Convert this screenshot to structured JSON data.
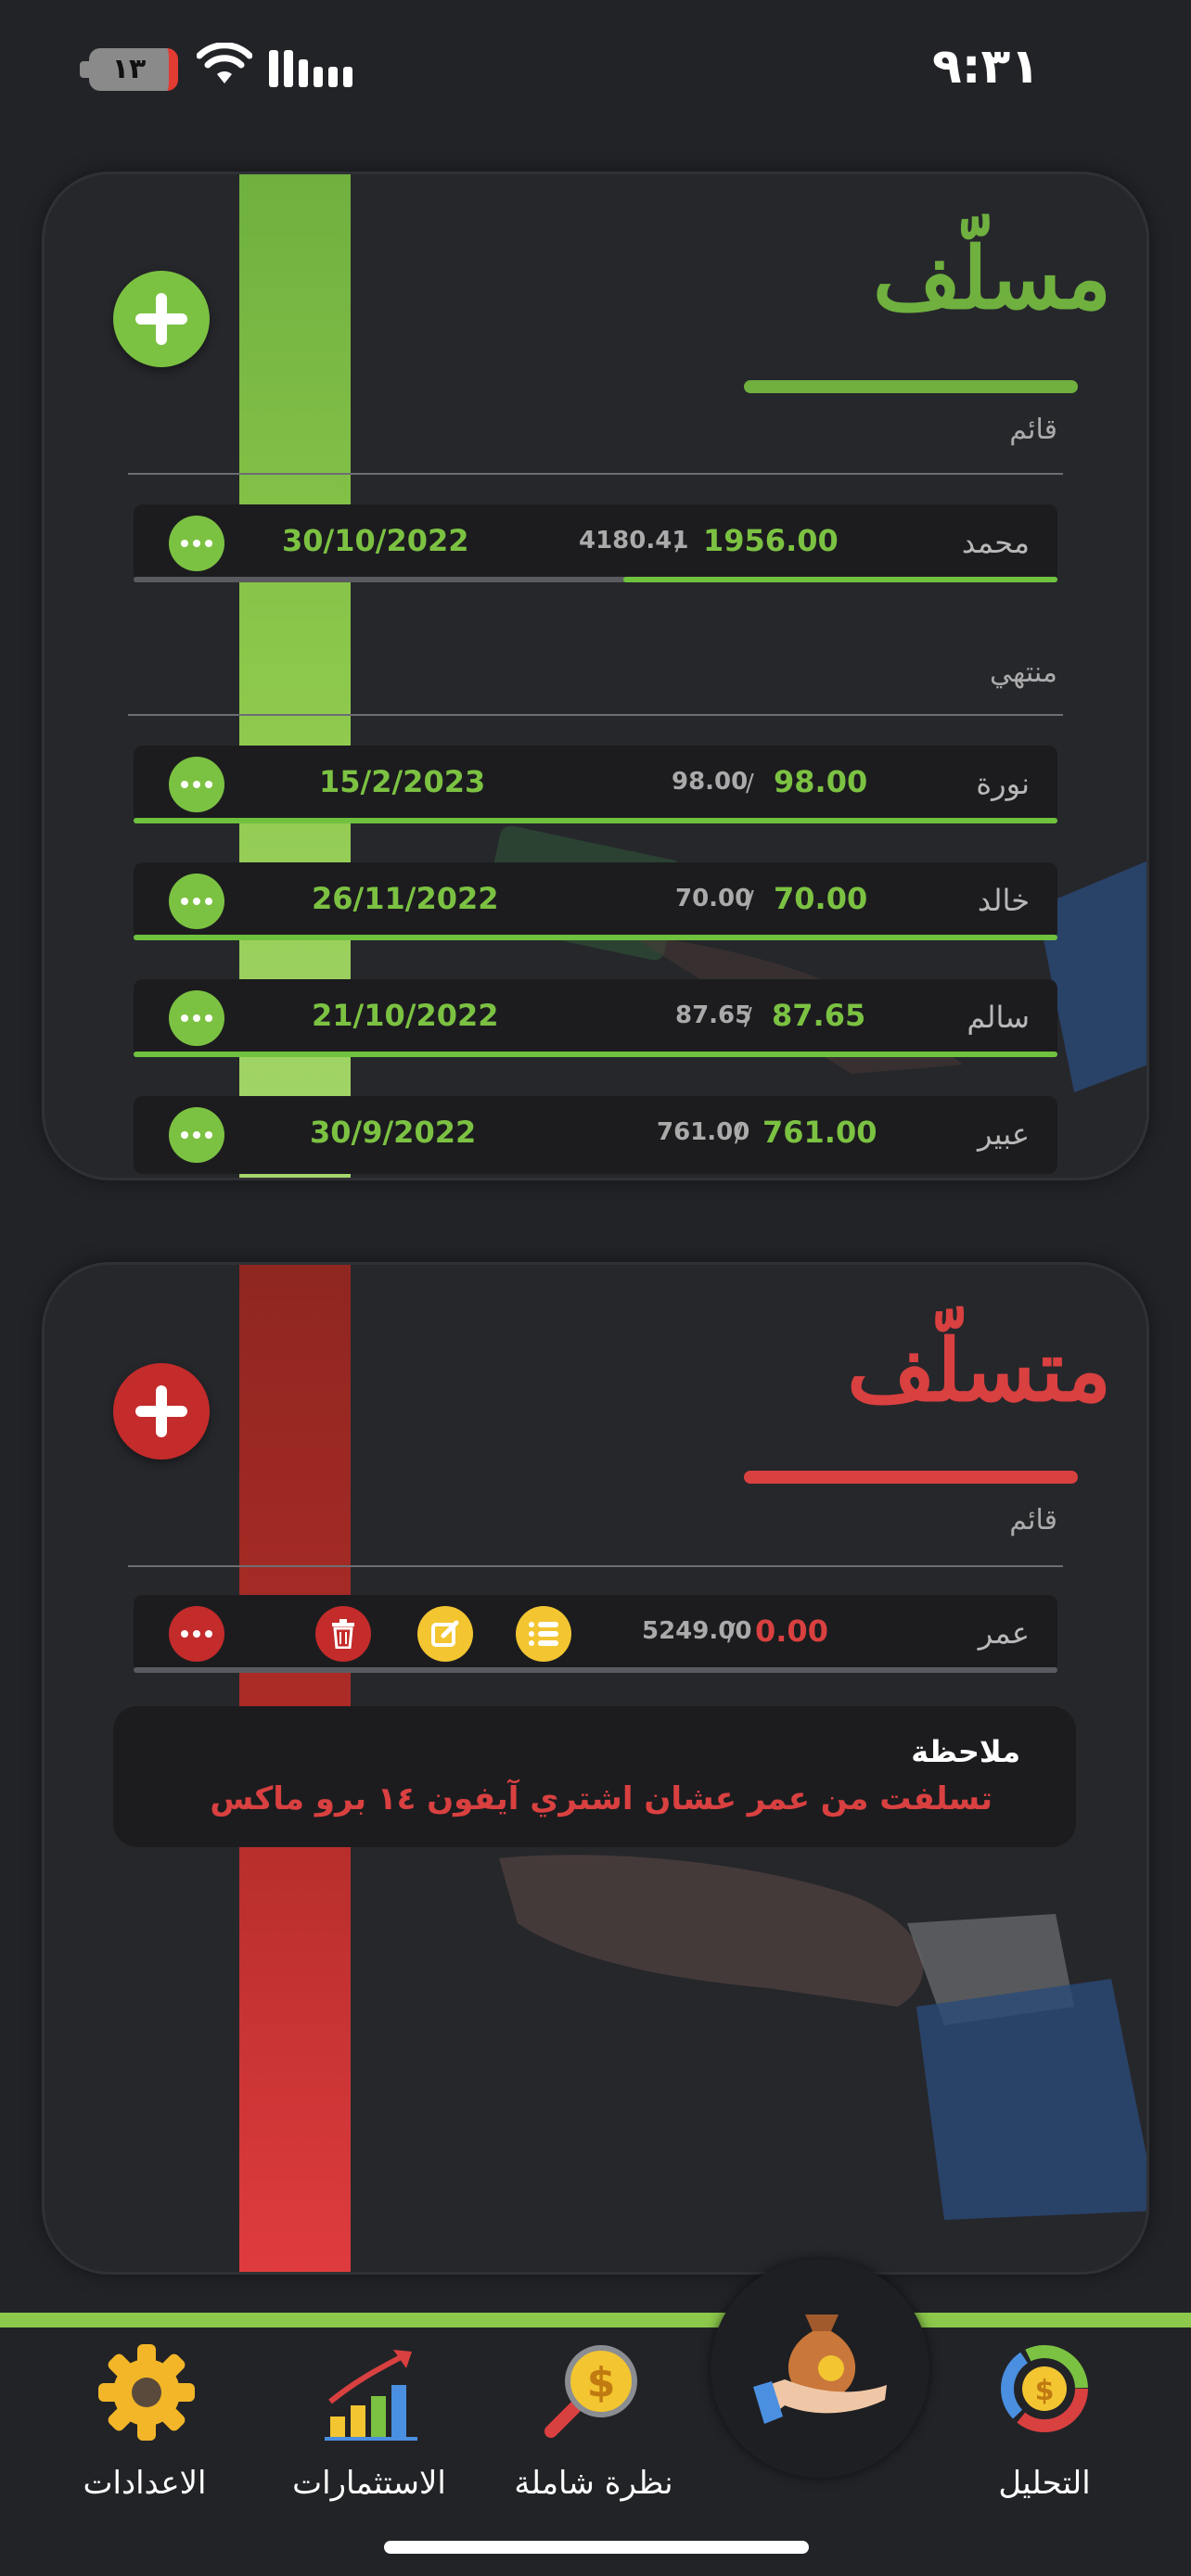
{
  "status_bar": {
    "time": "٩:٣١",
    "battery": "١٣"
  },
  "lent_card": {
    "title": "مسلّف",
    "color": "#6fb03f",
    "sections": [
      {
        "label": "قائم",
        "rows": [
          {
            "name": "محمد",
            "paid": "1956.00",
            "total": "4180.41",
            "date": "30/10/2022",
            "progress": 0.47
          }
        ]
      },
      {
        "label": "منتهي",
        "rows": [
          {
            "name": "نورة",
            "paid": "98.00",
            "total": "98.00",
            "date": "15/2/2023",
            "progress": 1.0
          },
          {
            "name": "خالد",
            "paid": "70.00",
            "total": "70.00",
            "date": "26/11/2022",
            "progress": 1.0
          },
          {
            "name": "سالم",
            "paid": "87.65",
            "total": "87.65",
            "date": "21/10/2022",
            "progress": 1.0
          },
          {
            "name": "عبير",
            "paid": "761.00",
            "total": "761.00",
            "date": "30/9/2022",
            "progress": 1.0
          }
        ]
      }
    ]
  },
  "borrowed_card": {
    "title": "متسلّف",
    "color": "#d94040",
    "section_label": "قائم",
    "row": {
      "name": "عمر",
      "paid": "0.00",
      "total": "5249.00",
      "progress": 0.0
    },
    "note": {
      "title": "ملاحظة",
      "text": "تسلفت من عمر عشان اشتري آيفون ١٤ برو ماكس"
    }
  },
  "nav": {
    "items": [
      {
        "label": "الاعدادات",
        "icon": "gear-icon"
      },
      {
        "label": "الاستثمارات",
        "icon": "investment-chart-icon"
      },
      {
        "label": "نظرة شاملة",
        "icon": "magnifier-dollar-icon"
      },
      {
        "label": "",
        "icon": "money-bag-hand-icon"
      },
      {
        "label": "التحليل",
        "icon": "donut-dollar-icon"
      }
    ]
  }
}
